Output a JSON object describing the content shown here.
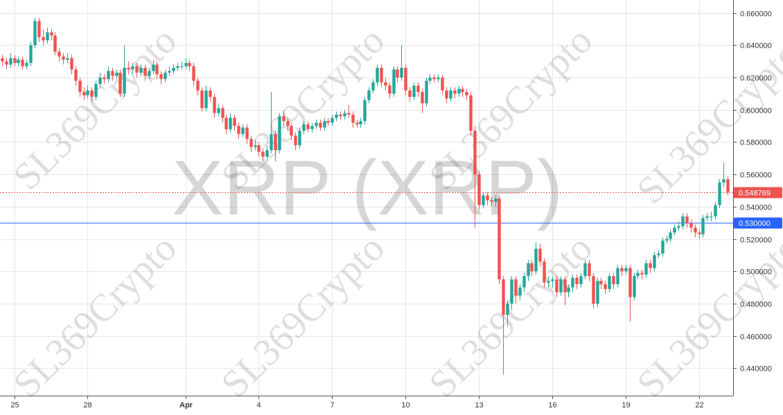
{
  "chart_data": {
    "type": "candlestick",
    "title": "XRP (XRP)",
    "watermark": "SL369Crypto",
    "up_color": "#26a69a",
    "down_color": "#ef5350",
    "grid": true,
    "xlim": [
      -0.5,
      179.4
    ],
    "xticks": [
      {
        "value": 3,
        "label": "25"
      },
      {
        "value": 21,
        "label": "28"
      },
      {
        "value": 45,
        "label": "Apr"
      },
      {
        "value": 63,
        "label": "4"
      },
      {
        "value": 81,
        "label": "7"
      },
      {
        "value": 99,
        "label": "10"
      },
      {
        "value": 117,
        "label": "13"
      },
      {
        "value": 135,
        "label": "16"
      },
      {
        "value": 153,
        "label": "19"
      },
      {
        "value": 171,
        "label": "22"
      }
    ],
    "ylim": [
      0.423,
      0.668
    ],
    "yticks": [
      {
        "value": 0.44,
        "label": "0.440000"
      },
      {
        "value": 0.46,
        "label": "0.460000"
      },
      {
        "value": 0.48,
        "label": "0.480000"
      },
      {
        "value": 0.5,
        "label": "0.500000"
      },
      {
        "value": 0.52,
        "label": "0.520000"
      },
      {
        "value": 0.54,
        "label": "0.540000"
      },
      {
        "value": 0.56,
        "label": "0.560000"
      },
      {
        "value": 0.58,
        "label": "0.580000"
      },
      {
        "value": 0.6,
        "label": "0.600000"
      },
      {
        "value": 0.62,
        "label": "0.620000"
      },
      {
        "value": 0.64,
        "label": "0.640000"
      },
      {
        "value": 0.66,
        "label": "0.660000"
      }
    ],
    "price_lines": [
      {
        "value": 0.548769,
        "label": "0.548769",
        "color": "#ef5350",
        "style": "dotted"
      },
      {
        "value": 0.53,
        "label": "0.530000",
        "color": "#2962ff",
        "style": "solid"
      }
    ],
    "open": [
      0.632,
      0.63,
      0.628,
      0.632,
      0.629,
      0.631,
      0.627,
      0.629,
      0.64,
      0.655,
      0.645,
      0.643,
      0.648,
      0.646,
      0.636,
      0.633,
      0.631,
      0.632,
      0.625,
      0.618,
      0.611,
      0.609,
      0.612,
      0.608,
      0.616,
      0.62,
      0.619,
      0.624,
      0.621,
      0.623,
      0.61,
      0.626,
      0.625,
      0.627,
      0.623,
      0.626,
      0.621,
      0.624,
      0.628,
      0.622,
      0.619,
      0.623,
      0.624,
      0.626,
      0.627,
      0.627,
      0.629,
      0.627,
      0.618,
      0.612,
      0.601,
      0.612,
      0.608,
      0.598,
      0.601,
      0.595,
      0.588,
      0.595,
      0.59,
      0.585,
      0.589,
      0.582,
      0.577,
      0.578,
      0.574,
      0.571,
      0.575,
      0.585,
      0.575,
      0.596,
      0.593,
      0.59,
      0.584,
      0.578,
      0.587,
      0.591,
      0.588,
      0.59,
      0.592,
      0.589,
      0.593,
      0.592,
      0.595,
      0.597,
      0.596,
      0.598,
      0.597,
      0.592,
      0.591,
      0.593,
      0.606,
      0.612,
      0.617,
      0.626,
      0.617,
      0.615,
      0.61,
      0.625,
      0.62,
      0.626,
      0.612,
      0.608,
      0.615,
      0.611,
      0.604,
      0.618,
      0.62,
      0.619,
      0.62,
      0.612,
      0.607,
      0.612,
      0.61,
      0.613,
      0.611,
      0.609,
      0.587,
      0.56,
      0.541,
      0.547,
      0.544,
      0.543,
      0.545,
      0.495,
      0.473,
      0.48,
      0.495,
      0.485,
      0.49,
      0.497,
      0.505,
      0.5,
      0.514,
      0.506,
      0.493,
      0.494,
      0.495,
      0.487,
      0.495,
      0.487,
      0.49,
      0.496,
      0.492,
      0.497,
      0.505,
      0.497,
      0.48,
      0.494,
      0.492,
      0.489,
      0.497,
      0.492,
      0.502,
      0.5,
      0.502,
      0.484,
      0.497,
      0.499,
      0.498,
      0.505,
      0.502,
      0.51,
      0.511,
      0.519,
      0.52,
      0.524,
      0.527,
      0.528,
      0.534,
      0.53,
      0.527,
      0.524,
      0.523,
      0.533,
      0.534,
      0.534,
      0.541,
      0.555,
      0.557
    ],
    "high": [
      0.634,
      0.632,
      0.635,
      0.634,
      0.633,
      0.633,
      0.631,
      0.642,
      0.657,
      0.657,
      0.65,
      0.651,
      0.65,
      0.648,
      0.638,
      0.635,
      0.635,
      0.634,
      0.627,
      0.62,
      0.614,
      0.615,
      0.614,
      0.618,
      0.623,
      0.622,
      0.627,
      0.626,
      0.625,
      0.625,
      0.64,
      0.63,
      0.629,
      0.629,
      0.628,
      0.628,
      0.626,
      0.631,
      0.63,
      0.624,
      0.625,
      0.627,
      0.628,
      0.629,
      0.63,
      0.632,
      0.631,
      0.629,
      0.62,
      0.614,
      0.615,
      0.614,
      0.61,
      0.604,
      0.603,
      0.597,
      0.598,
      0.597,
      0.592,
      0.591,
      0.591,
      0.584,
      0.581,
      0.58,
      0.576,
      0.578,
      0.611,
      0.587,
      0.598,
      0.599,
      0.595,
      0.592,
      0.586,
      0.589,
      0.593,
      0.593,
      0.592,
      0.594,
      0.594,
      0.595,
      0.595,
      0.597,
      0.599,
      0.599,
      0.6,
      0.603,
      0.599,
      0.594,
      0.595,
      0.608,
      0.614,
      0.619,
      0.628,
      0.628,
      0.62,
      0.617,
      0.627,
      0.627,
      0.64,
      0.628,
      0.614,
      0.617,
      0.617,
      0.613,
      0.62,
      0.622,
      0.622,
      0.622,
      0.622,
      0.614,
      0.614,
      0.614,
      0.615,
      0.615,
      0.613,
      0.611,
      0.59,
      0.562,
      0.549,
      0.549,
      0.546,
      0.547,
      0.547,
      0.497,
      0.482,
      0.497,
      0.497,
      0.492,
      0.499,
      0.507,
      0.507,
      0.518,
      0.517,
      0.508,
      0.497,
      0.497,
      0.497,
      0.497,
      0.497,
      0.492,
      0.498,
      0.498,
      0.499,
      0.507,
      0.507,
      0.499,
      0.496,
      0.496,
      0.494,
      0.499,
      0.499,
      0.504,
      0.504,
      0.504,
      0.504,
      0.499,
      0.501,
      0.501,
      0.507,
      0.507,
      0.512,
      0.513,
      0.521,
      0.522,
      0.526,
      0.529,
      0.531,
      0.536,
      0.536,
      0.532,
      0.529,
      0.526,
      0.535,
      0.536,
      0.537,
      0.543,
      0.557,
      0.567,
      0.559
    ],
    "low": [
      0.627,
      0.625,
      0.626,
      0.627,
      0.627,
      0.625,
      0.625,
      0.627,
      0.638,
      0.642,
      0.64,
      0.641,
      0.643,
      0.634,
      0.63,
      0.628,
      0.629,
      0.622,
      0.615,
      0.608,
      0.606,
      0.607,
      0.605,
      0.606,
      0.614,
      0.616,
      0.617,
      0.618,
      0.619,
      0.608,
      0.608,
      0.622,
      0.622,
      0.62,
      0.621,
      0.618,
      0.619,
      0.622,
      0.619,
      0.616,
      0.617,
      0.621,
      0.622,
      0.624,
      0.625,
      0.625,
      0.624,
      0.615,
      0.609,
      0.599,
      0.599,
      0.605,
      0.595,
      0.596,
      0.592,
      0.585,
      0.586,
      0.587,
      0.582,
      0.583,
      0.579,
      0.574,
      0.575,
      0.571,
      0.568,
      0.568,
      0.573,
      0.568,
      0.573,
      0.59,
      0.587,
      0.581,
      0.575,
      0.576,
      0.585,
      0.586,
      0.586,
      0.588,
      0.587,
      0.587,
      0.59,
      0.59,
      0.593,
      0.594,
      0.594,
      0.595,
      0.589,
      0.589,
      0.589,
      0.591,
      0.604,
      0.61,
      0.615,
      0.614,
      0.612,
      0.607,
      0.608,
      0.617,
      0.618,
      0.609,
      0.605,
      0.606,
      0.608,
      0.598,
      0.602,
      0.616,
      0.617,
      0.617,
      0.609,
      0.604,
      0.605,
      0.607,
      0.608,
      0.608,
      0.606,
      0.584,
      0.527,
      0.538,
      0.539,
      0.541,
      0.54,
      0.54,
      0.492,
      0.436,
      0.466,
      0.476,
      0.48,
      0.482,
      0.487,
      0.494,
      0.497,
      0.498,
      0.503,
      0.49,
      0.49,
      0.49,
      0.484,
      0.485,
      0.479,
      0.484,
      0.487,
      0.489,
      0.49,
      0.495,
      0.494,
      0.477,
      0.478,
      0.489,
      0.486,
      0.487,
      0.489,
      0.49,
      0.497,
      0.498,
      0.469,
      0.482,
      0.495,
      0.495,
      0.496,
      0.499,
      0.5,
      0.508,
      0.509,
      0.517,
      0.518,
      0.522,
      0.525,
      0.526,
      0.527,
      0.524,
      0.521,
      0.52,
      0.521,
      0.531,
      0.531,
      0.532,
      0.539,
      0.552,
      0.547
    ],
    "close": [
      0.63,
      0.628,
      0.632,
      0.629,
      0.631,
      0.627,
      0.629,
      0.64,
      0.655,
      0.645,
      0.643,
      0.648,
      0.646,
      0.636,
      0.633,
      0.631,
      0.632,
      0.625,
      0.618,
      0.611,
      0.609,
      0.612,
      0.608,
      0.616,
      0.62,
      0.619,
      0.624,
      0.621,
      0.623,
      0.61,
      0.626,
      0.625,
      0.627,
      0.623,
      0.626,
      0.621,
      0.624,
      0.628,
      0.622,
      0.619,
      0.623,
      0.624,
      0.626,
      0.627,
      0.627,
      0.629,
      0.627,
      0.618,
      0.612,
      0.601,
      0.612,
      0.608,
      0.598,
      0.601,
      0.595,
      0.588,
      0.595,
      0.59,
      0.585,
      0.589,
      0.582,
      0.577,
      0.578,
      0.574,
      0.571,
      0.575,
      0.585,
      0.575,
      0.596,
      0.593,
      0.59,
      0.584,
      0.578,
      0.587,
      0.591,
      0.588,
      0.59,
      0.592,
      0.589,
      0.593,
      0.592,
      0.595,
      0.597,
      0.596,
      0.598,
      0.597,
      0.592,
      0.591,
      0.593,
      0.606,
      0.612,
      0.617,
      0.626,
      0.617,
      0.615,
      0.61,
      0.625,
      0.62,
      0.626,
      0.612,
      0.608,
      0.615,
      0.611,
      0.604,
      0.618,
      0.62,
      0.619,
      0.62,
      0.612,
      0.607,
      0.612,
      0.61,
      0.613,
      0.611,
      0.609,
      0.587,
      0.56,
      0.541,
      0.547,
      0.544,
      0.543,
      0.545,
      0.495,
      0.473,
      0.48,
      0.495,
      0.485,
      0.49,
      0.497,
      0.505,
      0.5,
      0.514,
      0.506,
      0.493,
      0.494,
      0.495,
      0.487,
      0.495,
      0.487,
      0.49,
      0.496,
      0.492,
      0.497,
      0.505,
      0.497,
      0.48,
      0.494,
      0.492,
      0.489,
      0.497,
      0.492,
      0.502,
      0.5,
      0.502,
      0.484,
      0.497,
      0.499,
      0.498,
      0.505,
      0.502,
      0.51,
      0.511,
      0.519,
      0.52,
      0.524,
      0.527,
      0.528,
      0.534,
      0.53,
      0.527,
      0.524,
      0.523,
      0.533,
      0.534,
      0.534,
      0.541,
      0.555,
      0.557,
      0.549
    ]
  }
}
